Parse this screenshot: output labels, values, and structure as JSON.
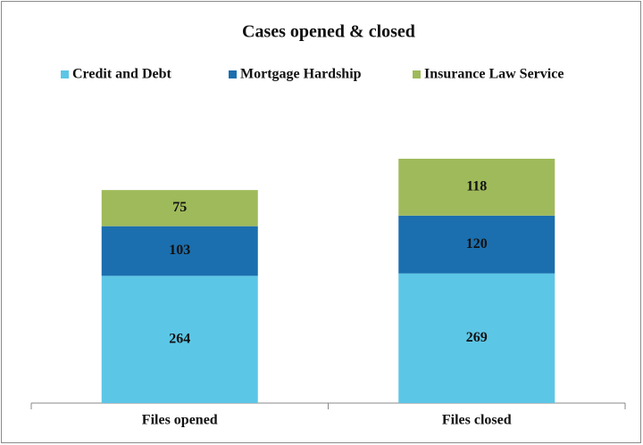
{
  "chart_data": {
    "type": "stacked_bar",
    "title": "Cases opened & closed",
    "categories": [
      "Files opened",
      "Files closed"
    ],
    "series": [
      {
        "name": "Credit and Debt",
        "color": "#5cc6e6",
        "values": [
          264,
          269
        ]
      },
      {
        "name": "Mortgage Hardship",
        "color": "#1b6fae",
        "values": [
          103,
          120
        ]
      },
      {
        "name": "Insurance Law Service",
        "color": "#9fba5a",
        "values": [
          75,
          118
        ]
      }
    ],
    "legend": "top"
  }
}
